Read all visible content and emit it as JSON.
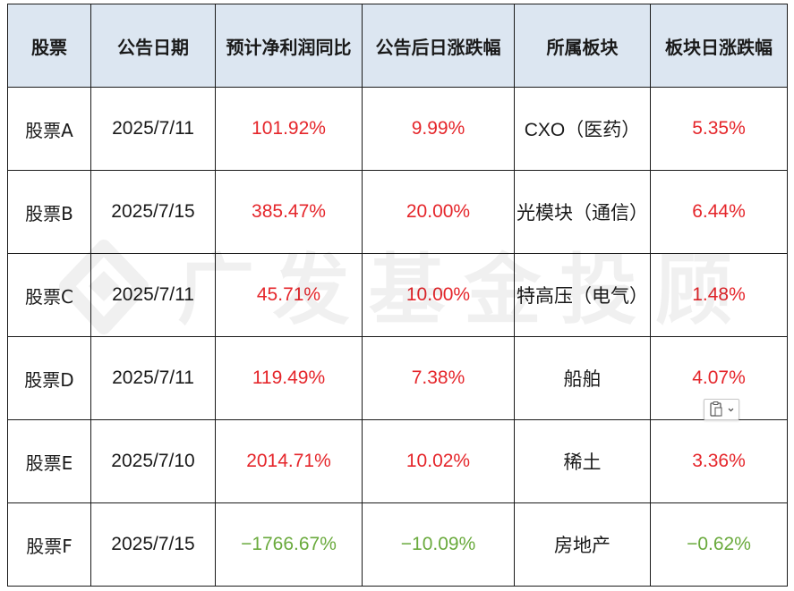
{
  "table": {
    "headers": [
      "股票",
      "公告日期",
      "预计净利润同比",
      "公告后日涨跌幅",
      "所属板块",
      "板块日涨跌幅"
    ],
    "rows": [
      {
        "stock": "股票A",
        "date": "2025/7/11",
        "profit_yoy": "101.92%",
        "post_change": "9.99%",
        "sector": "CXO（医药）",
        "sector_change": "5.35%"
      },
      {
        "stock": "股票B",
        "date": "2025/7/15",
        "profit_yoy": "385.47%",
        "post_change": "20.00%",
        "sector": "光模块（通信）",
        "sector_change": "6.44%"
      },
      {
        "stock": "股票C",
        "date": "2025/7/11",
        "profit_yoy": "45.71%",
        "post_change": "10.00%",
        "sector": "特高压（电气）",
        "sector_change": "1.48%"
      },
      {
        "stock": "股票D",
        "date": "2025/7/11",
        "profit_yoy": "119.49%",
        "post_change": "7.38%",
        "sector": "船舶",
        "sector_change": "4.07%"
      },
      {
        "stock": "股票E",
        "date": "2025/7/10",
        "profit_yoy": "2014.71%",
        "post_change": "10.02%",
        "sector": "稀土",
        "sector_change": "3.36%"
      },
      {
        "stock": "股票F",
        "date": "2025/7/15",
        "profit_yoy": "−1766.67%",
        "post_change": "−10.09%",
        "sector": "房地产",
        "sector_change": "−0.62%"
      }
    ]
  },
  "watermark": {
    "text": "广发基金投顾"
  },
  "colors": {
    "up": "#e5262b",
    "down": "#6aaa3d",
    "header_bg": "#dce6f1"
  },
  "paste_options": {
    "icon": "clipboard-icon"
  }
}
